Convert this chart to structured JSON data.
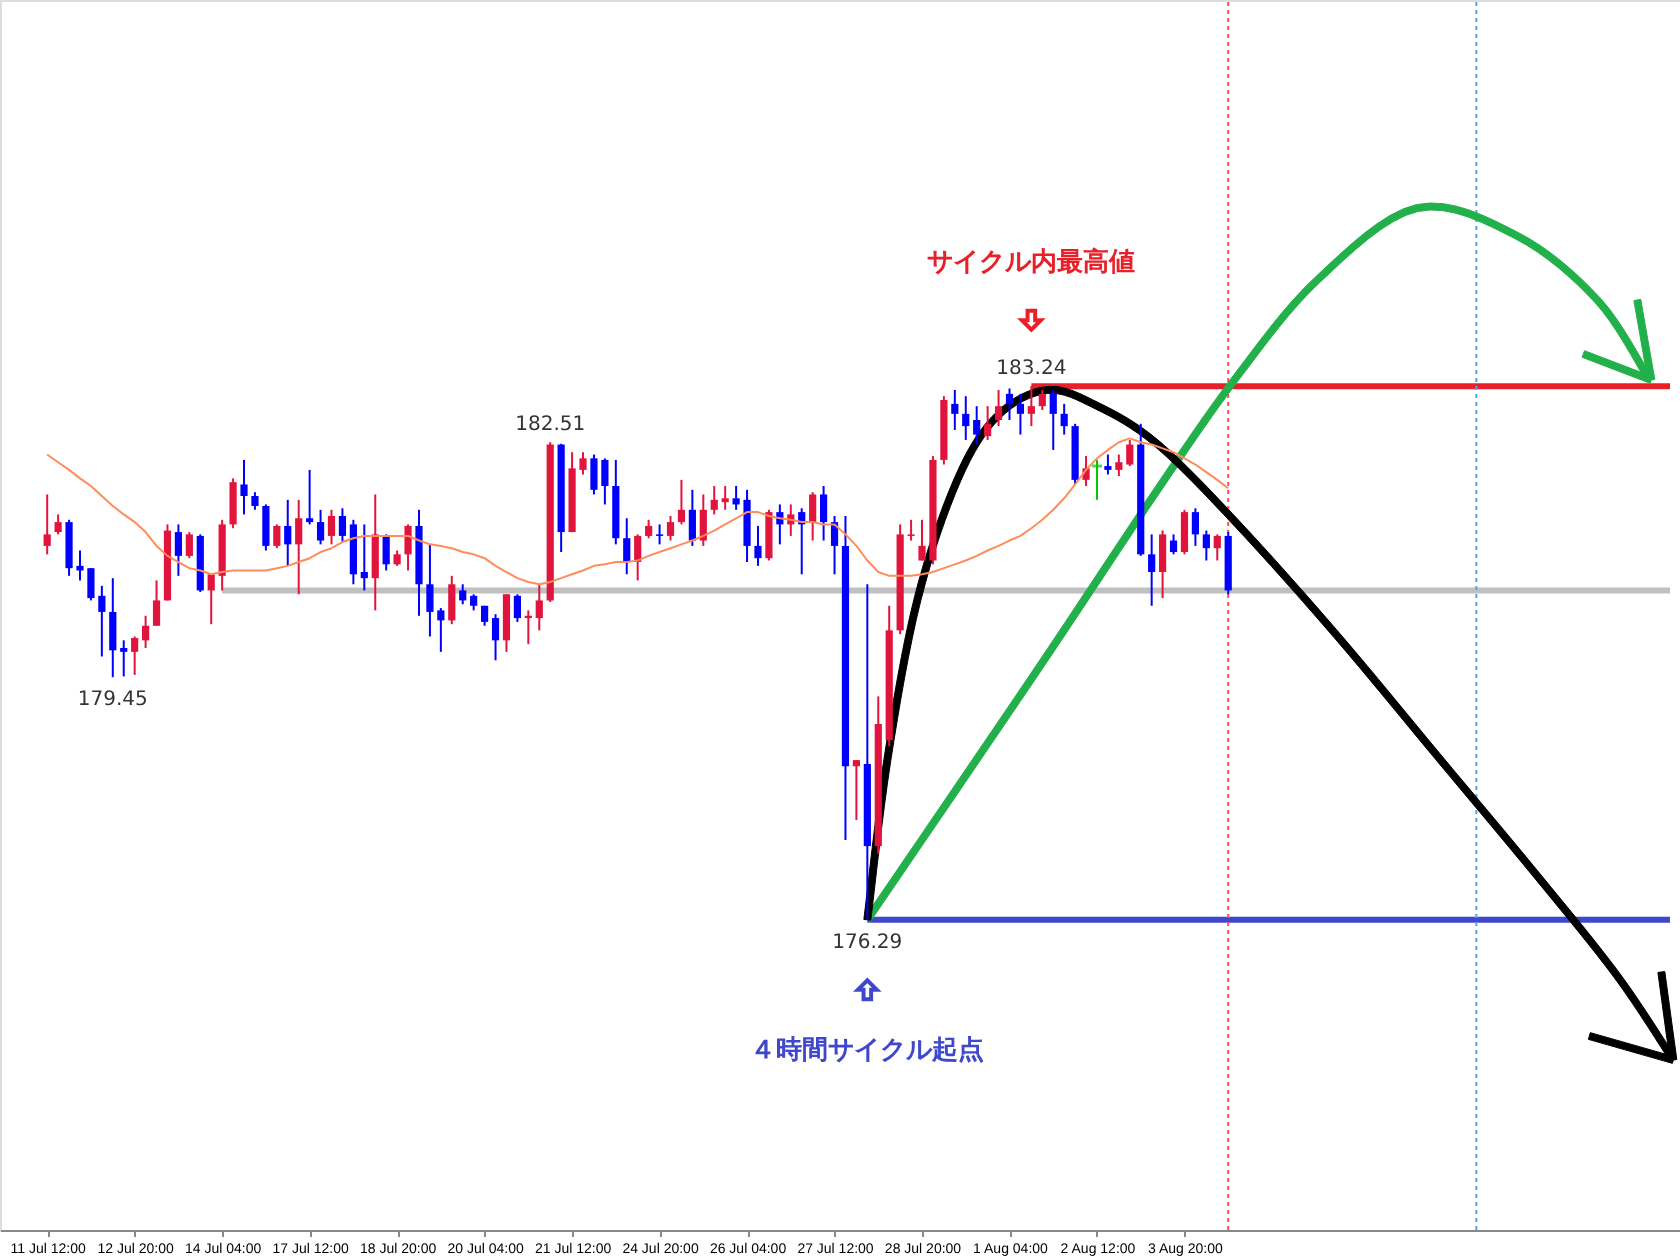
{
  "chart_data": {
    "type": "candlestick",
    "categories": [
      "11 Jul 12:00",
      null,
      null,
      null,
      null,
      null,
      null,
      null,
      "12 Jul 20:00",
      null,
      null,
      null,
      null,
      null,
      null,
      null,
      "14 Jul 04:00",
      null,
      null,
      null,
      null,
      null,
      null,
      null,
      "17 Jul 12:00",
      null,
      null,
      null,
      null,
      null,
      null,
      null,
      "18 Jul 20:00",
      null,
      null,
      null,
      null,
      null,
      null,
      null,
      "20 Jul 04:00",
      null,
      null,
      null,
      null,
      null,
      null,
      null,
      "21 Jul 12:00",
      null,
      null,
      null,
      null,
      null,
      null,
      null,
      "24 Jul 20:00",
      null,
      null,
      null,
      null,
      null,
      null,
      null,
      "26 Jul 04:00",
      null,
      null,
      null,
      null,
      null,
      null,
      null,
      "27 Jul 12:00",
      null,
      null,
      null,
      null,
      null,
      null,
      null,
      "28 Jul 20:00",
      null,
      null,
      null,
      null,
      null,
      null,
      null,
      "1 Aug 04:00",
      null,
      null,
      null,
      null,
      null,
      null,
      null,
      "2 Aug 12:00",
      null,
      null,
      null,
      null,
      null,
      null,
      null,
      "3 Aug 20:00",
      null,
      null,
      null,
      null,
      null,
      null,
      null,
      null,
      null,
      null,
      null,
      null,
      null,
      null,
      null,
      null,
      null,
      null,
      null,
      null,
      null,
      null,
      null,
      null,
      null,
      null,
      null,
      null,
      null,
      null,
      null,
      null,
      null,
      null,
      null,
      null,
      null,
      null,
      null,
      null,
      null,
      null,
      null,
      null,
      null,
      null
    ],
    "ohlc": [
      [
        181.16,
        181.83,
        181.05,
        181.31
      ],
      [
        181.34,
        181.57,
        181.31,
        181.47
      ],
      [
        181.47,
        181.5,
        180.77,
        180.87
      ],
      [
        180.9,
        181.1,
        180.71,
        180.84
      ],
      [
        180.87,
        180.87,
        180.45,
        180.48
      ],
      [
        180.51,
        180.64,
        179.72,
        180.3
      ],
      [
        180.3,
        180.74,
        179.45,
        179.8
      ],
      [
        179.83,
        179.93,
        179.46,
        179.78
      ],
      [
        179.78,
        179.98,
        179.48,
        179.96
      ],
      [
        179.93,
        180.25,
        179.83,
        180.12
      ],
      [
        180.12,
        180.71,
        180.12,
        180.45
      ],
      [
        180.45,
        181.44,
        180.45,
        181.36
      ],
      [
        181.34,
        181.44,
        180.77,
        181.03
      ],
      [
        181.03,
        181.34,
        181.0,
        181.31
      ],
      [
        181.29,
        181.31,
        180.56,
        180.58
      ],
      [
        180.58,
        180.79,
        180.14,
        180.79
      ],
      [
        180.77,
        181.5,
        180.58,
        181.44
      ],
      [
        181.44,
        182.04,
        181.39,
        181.99
      ],
      [
        181.96,
        182.28,
        181.57,
        181.81
      ],
      [
        181.81,
        181.86,
        181.63,
        181.68
      ],
      [
        181.68,
        181.7,
        181.1,
        181.16
      ],
      [
        181.16,
        181.44,
        181.13,
        181.42
      ],
      [
        181.42,
        181.76,
        180.9,
        181.18
      ],
      [
        181.18,
        181.76,
        180.53,
        181.52
      ],
      [
        181.52,
        182.15,
        181.44,
        181.47
      ],
      [
        181.47,
        181.63,
        181.18,
        181.23
      ],
      [
        181.29,
        181.63,
        181.18,
        181.55
      ],
      [
        181.55,
        181.65,
        181.21,
        181.29
      ],
      [
        181.44,
        181.5,
        180.66,
        180.79
      ],
      [
        180.82,
        181.44,
        180.58,
        180.74
      ],
      [
        180.74,
        181.83,
        180.32,
        181.31
      ],
      [
        181.29,
        181.31,
        180.84,
        180.92
      ],
      [
        180.92,
        181.1,
        180.9,
        181.05
      ],
      [
        181.05,
        181.44,
        180.84,
        181.42
      ],
      [
        181.42,
        181.63,
        180.25,
        180.66
      ],
      [
        180.66,
        181.18,
        179.98,
        180.3
      ],
      [
        180.32,
        180.35,
        179.78,
        180.19
      ],
      [
        180.19,
        180.77,
        180.14,
        180.66
      ],
      [
        180.58,
        180.66,
        180.4,
        180.45
      ],
      [
        180.51,
        180.53,
        180.32,
        180.38
      ],
      [
        180.38,
        180.38,
        180.12,
        180.17
      ],
      [
        180.22,
        180.27,
        179.67,
        179.93
      ],
      [
        179.93,
        180.53,
        179.78,
        180.53
      ],
      [
        180.51,
        180.53,
        180.17,
        180.22
      ],
      [
        180.22,
        180.32,
        179.88,
        180.25
      ],
      [
        180.22,
        180.66,
        180.06,
        180.45
      ],
      [
        180.45,
        182.51,
        180.43,
        182.48
      ],
      [
        182.48,
        182.49,
        181.08,
        181.34
      ],
      [
        181.34,
        182.38,
        181.34,
        182.17
      ],
      [
        182.15,
        182.38,
        182.09,
        182.3
      ],
      [
        182.3,
        182.35,
        181.83,
        181.89
      ],
      [
        182.28,
        182.3,
        181.7,
        181.94
      ],
      [
        181.94,
        182.28,
        181.18,
        181.26
      ],
      [
        181.26,
        181.52,
        180.79,
        180.95
      ],
      [
        180.95,
        181.31,
        180.71,
        181.29
      ],
      [
        181.29,
        181.5,
        181.26,
        181.42
      ],
      [
        181.31,
        181.44,
        181.18,
        181.29
      ],
      [
        181.29,
        181.55,
        181.23,
        181.47
      ],
      [
        181.47,
        182.02,
        181.44,
        181.63
      ],
      [
        181.63,
        181.89,
        181.16,
        181.23
      ],
      [
        181.23,
        181.83,
        181.16,
        181.63
      ],
      [
        181.63,
        181.94,
        181.57,
        181.76
      ],
      [
        181.73,
        181.94,
        181.63,
        181.78
      ],
      [
        181.78,
        181.94,
        181.63,
        181.7
      ],
      [
        181.76,
        181.89,
        180.95,
        181.16
      ],
      [
        181.16,
        181.42,
        180.9,
        181.0
      ],
      [
        181.0,
        181.63,
        180.97,
        181.6
      ],
      [
        181.6,
        181.7,
        181.18,
        181.44
      ],
      [
        181.44,
        181.7,
        181.29,
        181.57
      ],
      [
        181.6,
        181.65,
        180.79,
        181.44
      ],
      [
        181.47,
        181.86,
        181.23,
        181.83
      ],
      [
        181.83,
        181.94,
        181.23,
        181.47
      ],
      [
        181.47,
        181.55,
        180.79,
        181.16
      ],
      [
        181.16,
        181.55,
        177.33,
        178.29
      ],
      [
        178.29,
        178.37,
        177.59,
        178.37
      ],
      [
        178.32,
        180.66,
        176.29,
        177.25
      ],
      [
        177.25,
        179.2,
        177.15,
        178.84
      ],
      [
        178.63,
        180.38,
        178.55,
        180.06
      ],
      [
        180.06,
        181.44,
        180.01,
        181.31
      ],
      [
        181.29,
        181.5,
        181.23,
        181.31
      ],
      [
        180.97,
        181.5,
        180.97,
        181.16
      ],
      [
        180.97,
        182.33,
        180.92,
        182.28
      ],
      [
        182.28,
        183.11,
        182.22,
        183.06
      ],
      [
        183.01,
        183.19,
        182.67,
        182.88
      ],
      [
        182.88,
        183.11,
        182.54,
        182.72
      ],
      [
        182.8,
        182.98,
        182.48,
        182.61
      ],
      [
        182.59,
        182.98,
        182.54,
        182.75
      ],
      [
        182.8,
        183.19,
        182.72,
        182.98
      ],
      [
        183.14,
        183.21,
        182.8,
        183.01
      ],
      [
        183.01,
        183.14,
        182.61,
        182.88
      ],
      [
        182.88,
        183.24,
        182.72,
        182.98
      ],
      [
        182.98,
        183.19,
        182.93,
        183.14
      ],
      [
        183.14,
        183.19,
        182.41,
        182.88
      ],
      [
        182.88,
        183.01,
        182.61,
        182.72
      ],
      [
        182.72,
        182.75,
        181.96,
        182.02
      ],
      [
        182.02,
        182.33,
        181.94,
        182.17
      ],
      [
        182.2,
        182.28,
        181.76,
        182.2
      ],
      [
        182.2,
        182.35,
        182.09,
        182.15
      ],
      [
        182.15,
        182.35,
        182.07,
        182.25
      ],
      [
        182.22,
        182.54,
        182.2,
        182.48
      ],
      [
        182.48,
        182.75,
        181.03,
        181.05
      ],
      [
        181.05,
        181.31,
        180.38,
        180.82
      ],
      [
        180.82,
        181.36,
        180.48,
        181.31
      ],
      [
        181.23,
        181.31,
        181.05,
        181.08
      ],
      [
        181.08,
        181.63,
        181.05,
        181.6
      ],
      [
        181.6,
        181.65,
        181.16,
        181.31
      ],
      [
        181.31,
        181.36,
        180.97,
        181.13
      ],
      [
        181.13,
        181.31,
        180.97,
        181.29
      ],
      [
        181.29,
        181.34,
        180.53,
        180.58
      ],
      null,
      null,
      null,
      null,
      null,
      null,
      null,
      null,
      null,
      null,
      null,
      null,
      null,
      null,
      null,
      null,
      null,
      null,
      null,
      null,
      null,
      null,
      null,
      null,
      null,
      null,
      null,
      null,
      null,
      null,
      null,
      null,
      null,
      null,
      null,
      null,
      null,
      null,
      null,
      null,
      null,
      null
    ],
    "colors": [
      "#e0143c",
      "#e0143c",
      "#0000ff",
      "#0000ff",
      "#0000ff",
      "#0000ff",
      "#0000ff",
      "#0000ff",
      "#e0143c",
      "#e0143c",
      "#e0143c",
      "#e0143c",
      "#0000ff",
      "#e0143c",
      "#0000ff",
      "#e0143c",
      "#e0143c",
      "#e0143c",
      "#0000ff",
      "#0000ff",
      "#0000ff",
      "#e0143c",
      "#0000ff",
      "#e0143c",
      "#0000ff",
      "#0000ff",
      "#e0143c",
      "#0000ff",
      "#0000ff",
      "#0000ff",
      "#e0143c",
      "#0000ff",
      "#e0143c",
      "#e0143c",
      "#0000ff",
      "#0000ff",
      "#0000ff",
      "#e0143c",
      "#0000ff",
      "#0000ff",
      "#0000ff",
      "#0000ff",
      "#e0143c",
      "#0000ff",
      "#e0143c",
      "#e0143c",
      "#e0143c",
      "#0000ff",
      "#e0143c",
      "#e0143c",
      "#0000ff",
      "#0000ff",
      "#0000ff",
      "#0000ff",
      "#e0143c",
      "#e0143c",
      "#0000ff",
      "#e0143c",
      "#e0143c",
      "#0000ff",
      "#e0143c",
      "#e0143c",
      "#e0143c",
      "#0000ff",
      "#0000ff",
      "#0000ff",
      "#e0143c",
      "#0000ff",
      "#e0143c",
      "#0000ff",
      "#e0143c",
      "#0000ff",
      "#0000ff",
      "#0000ff",
      "#e0143c",
      "#0000ff",
      "#e0143c",
      "#e0143c",
      "#e0143c",
      "#e0143c",
      "#e0143c",
      "#e0143c",
      "#e0143c",
      "#0000ff",
      "#0000ff",
      "#0000ff",
      "#e0143c",
      "#e0143c",
      "#0000ff",
      "#0000ff",
      "#e0143c",
      "#e0143c",
      "#0000ff",
      "#0000ff",
      "#0000ff",
      "#e0143c",
      "#00c800",
      "#0000ff",
      "#e0143c",
      "#e0143c",
      "#0000ff",
      "#0000ff",
      "#e0143c",
      "#0000ff",
      "#e0143c",
      "#0000ff",
      "#0000ff",
      "#e0143c",
      "#0000ff",
      null,
      null,
      null,
      null,
      null,
      null,
      null,
      null,
      null,
      null,
      null,
      null,
      null,
      null,
      null,
      null,
      null,
      null,
      null,
      null,
      null,
      null,
      null,
      null,
      null,
      null,
      null,
      null,
      null,
      null,
      null,
      null,
      null,
      null,
      null,
      null,
      null,
      null,
      null,
      null,
      null,
      null
    ],
    "series": [
      {
        "type": "line",
        "color": "#ff8c5a",
        "values": [
          182.35,
          182.25,
          182.15,
          182.04,
          181.94,
          181.81,
          181.68,
          181.57,
          181.47,
          181.34,
          181.16,
          181.03,
          180.95,
          180.87,
          180.84,
          180.79,
          180.82,
          180.84,
          180.84,
          180.84,
          180.84,
          180.87,
          180.9,
          180.95,
          181.0,
          181.08,
          181.13,
          181.21,
          181.26,
          181.29,
          181.29,
          181.29,
          181.29,
          181.29,
          181.23,
          181.18,
          181.16,
          181.13,
          181.08,
          181.05,
          181.0,
          180.9,
          180.82,
          180.74,
          180.69,
          180.66,
          180.69,
          180.74,
          180.79,
          180.84,
          180.9,
          180.92,
          180.95,
          180.95,
          180.97,
          181.03,
          181.08,
          181.13,
          181.18,
          181.23,
          181.29,
          181.36,
          181.44,
          181.52,
          181.6,
          181.6,
          181.55,
          181.52,
          181.5,
          181.47,
          181.47,
          181.44,
          181.44,
          181.31,
          181.16,
          180.97,
          180.82,
          180.77,
          180.77,
          180.77,
          180.79,
          180.82,
          180.87,
          180.92,
          180.97,
          181.03,
          181.1,
          181.16,
          181.23,
          181.29,
          181.39,
          181.5,
          181.63,
          181.78,
          181.96,
          182.15,
          182.3,
          182.41,
          182.51,
          182.56,
          182.51,
          182.48,
          182.43,
          182.38,
          182.3,
          182.22,
          182.12,
          182.02,
          181.91,
          null,
          null,
          null,
          null,
          null,
          null,
          null,
          null,
          null,
          null,
          null,
          null,
          null,
          null,
          null,
          null,
          null,
          null,
          null,
          null,
          null,
          null,
          null,
          null,
          null,
          null,
          null,
          null,
          null,
          null,
          null,
          null,
          null,
          null,
          null,
          null,
          null,
          null,
          null,
          null,
          null,
          null
        ]
      }
    ],
    "ylim": [
      172.25,
      188.27
    ],
    "tick_labels": "x",
    "ref_lines": [
      {
        "axis": "y",
        "value": 183.24,
        "color": "#e8202a"
      },
      {
        "axis": "y",
        "value": 176.29,
        "color": "#3f48cc"
      },
      {
        "axis": "y",
        "value": 180.58,
        "color": "#c0c0c0"
      }
    ],
    "annotations": [
      {
        "text": "183.24",
        "y": 183.24
      },
      "サイクル内最高値",
      {
        "text": "182.51",
        "y": 182.51
      },
      {
        "text": "179.45",
        "y": 179.45
      },
      {
        "text": "176.29",
        "y": 176.29
      },
      "４時間サイクル起点"
    ]
  }
}
